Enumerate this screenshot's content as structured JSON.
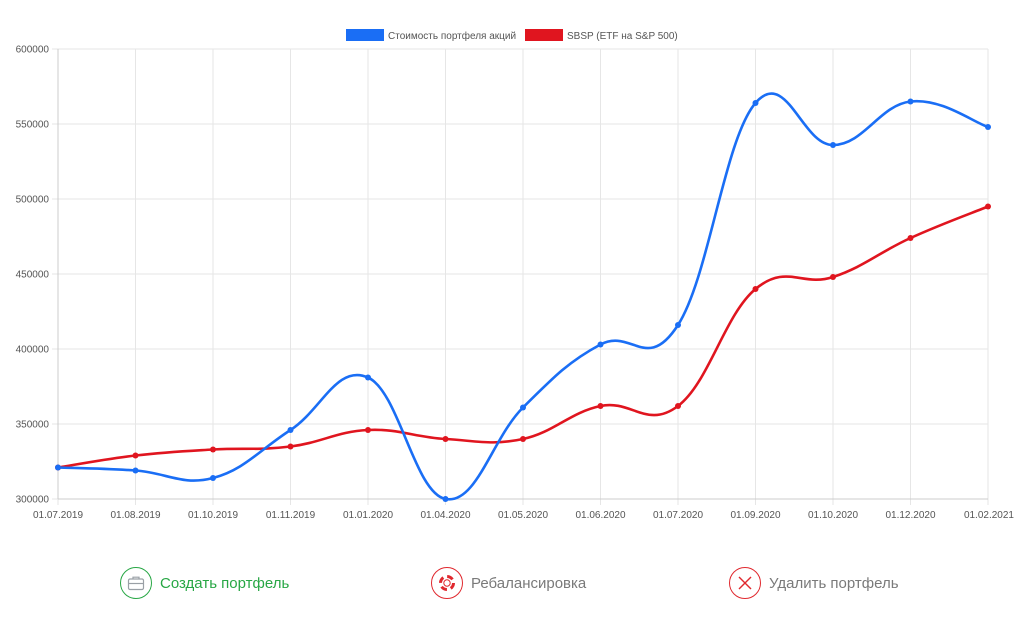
{
  "chart_data": {
    "type": "line",
    "title": "",
    "xlabel": "",
    "ylabel": "",
    "categories": [
      "01.07.2019",
      "01.08.2019",
      "01.10.2019",
      "01.11.2019",
      "01.01.2020",
      "01.04.2020",
      "01.05.2020",
      "01.06.2020",
      "01.07.2020",
      "01.09.2020",
      "01.10.2020",
      "01.12.2020",
      "01.02.2021"
    ],
    "ylim": [
      300000,
      600000
    ],
    "yticks": [
      300000,
      350000,
      400000,
      450000,
      500000,
      550000,
      600000
    ],
    "grid": true,
    "legend_position": "top-center",
    "series": [
      {
        "name": "Стоимость портфеля акций",
        "color": "#1a6ef5",
        "values": [
          321000,
          319000,
          314000,
          346000,
          381000,
          300000,
          361000,
          403000,
          416000,
          564000,
          536000,
          565000,
          548000
        ]
      },
      {
        "name": "SBSP (ETF на S&P 500)",
        "color": "#e0151f",
        "values": [
          321000,
          329000,
          333000,
          335000,
          346000,
          340000,
          340000,
          362000,
          362000,
          440000,
          448000,
          474000,
          495000
        ]
      }
    ]
  },
  "actions": {
    "create": {
      "label": "Создать портфель",
      "icon": "briefcase-icon",
      "color": "#28a745"
    },
    "rebalance": {
      "label": "Ребалансировка",
      "icon": "lifebuoy-icon",
      "color": "#e0282e"
    },
    "delete": {
      "label": "Удалить портфель",
      "icon": "close-icon",
      "color": "#e0282e"
    }
  }
}
